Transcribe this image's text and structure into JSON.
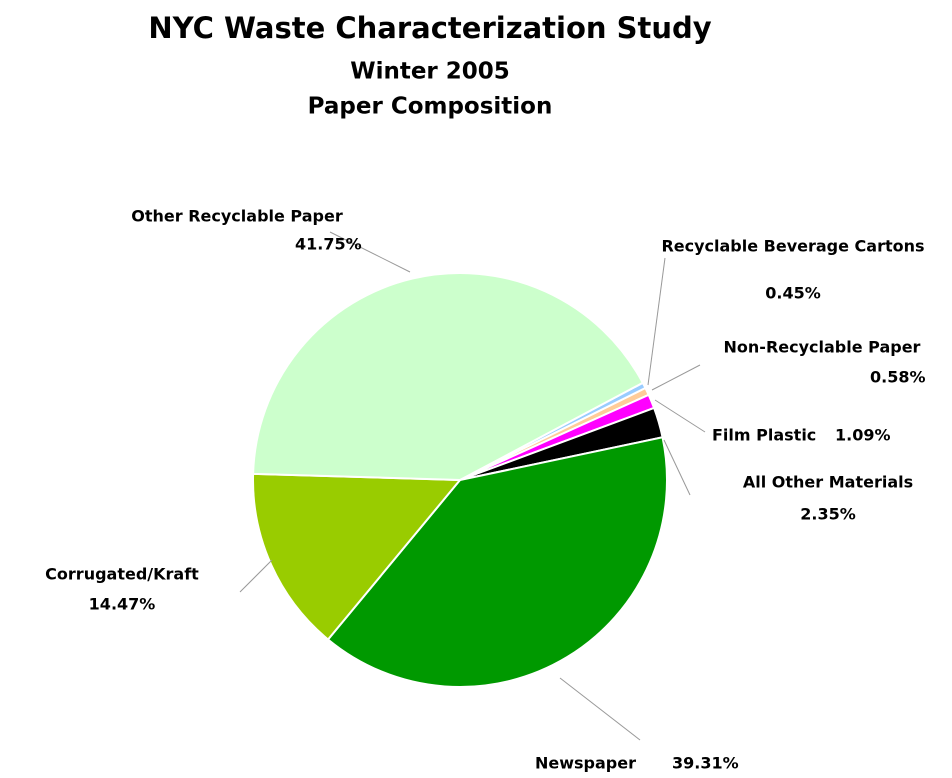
{
  "chart_data": {
    "type": "pie",
    "title": "NYC Waste Characterization Study",
    "subtitle": [
      "Winter 2005",
      "Paper Composition"
    ],
    "categories": [
      "Recyclable Beverage Cartons",
      "Non-Recyclable Paper",
      "Film Plastic",
      "All Other Materials",
      "Newspaper",
      "Corrugated/Kraft",
      "Other Recyclable Paper"
    ],
    "values": [
      0.45,
      0.58,
      1.09,
      2.35,
      39.31,
      14.47,
      41.75
    ],
    "value_labels": [
      "0.45%",
      "0.58%",
      "1.09%",
      "2.35%",
      "39.31%",
      "14.47%",
      "41.75%"
    ],
    "colors": [
      "#99ccff",
      "#ffcc99",
      "#ff00ff",
      "#000000",
      "#009900",
      "#99cc00",
      "#ccffcc"
    ]
  }
}
